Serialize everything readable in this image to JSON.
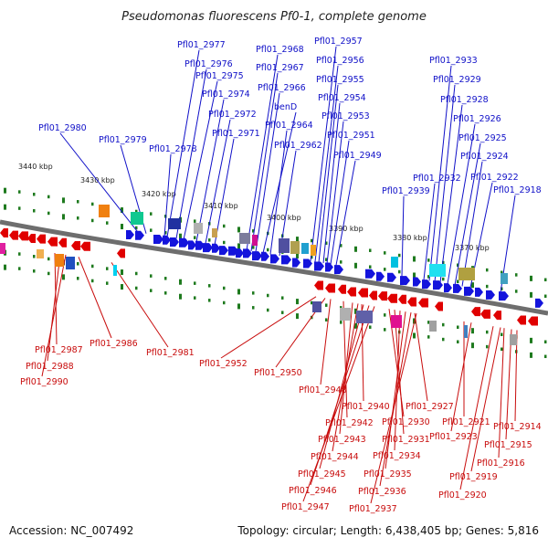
{
  "title": "Pseudomonas fluorescens Pf0-1, complete genome",
  "accession": "Accession: NC_007492",
  "summary": "Topology: circular; Length: 6,438,405 bp; Genes: 5,816",
  "colors": {
    "forward": "#1414dc",
    "reverse": "#e00000",
    "label_top": "#1010c8",
    "label_bot": "#c80c0c",
    "ticks": "#1e7a1e"
  },
  "kbp_labels": [
    "3440 kbp",
    "3430 kbp",
    "3420 kbp",
    "3410 kbp",
    "3400 kbp",
    "3390 kbp",
    "3380 kbp",
    "3370 kbp"
  ],
  "top_labels": [
    "Pfl01_2977",
    "Pfl01_2976",
    "Pfl01_2975",
    "Pfl01_2974",
    "Pfl01_2972",
    "Pfl01_2971",
    "Pfl01_2980",
    "Pfl01_2979",
    "Pfl01_2978",
    "Pfl01_2968",
    "Pfl01_2967",
    "Pfl01_2966",
    "benD",
    "Pfl01_2964",
    "Pfl01_2962",
    "Pfl01_2957",
    "Pfl01_2956",
    "Pfl01_2955",
    "Pfl01_2954",
    "Pfl01_2953",
    "Pfl01_2951",
    "Pfl01_2949",
    "Pfl01_2933",
    "Pfl01_2929",
    "Pfl01_2928",
    "Pfl01_2926",
    "Pfl01_2925",
    "Pfl01_2924",
    "Pfl01_2922",
    "Pfl01_2932",
    "Pfl01_2939",
    "Pfl01_2918"
  ],
  "bottom_labels": [
    "Pfl01_2987",
    "Pfl01_2988",
    "Pfl01_2990",
    "Pfl01_2986",
    "Pfl01_2981",
    "Pfl01_2952",
    "Pfl01_2950",
    "Pfl01_2948",
    "Pfl01_2940",
    "Pfl01_2942",
    "Pfl01_2943",
    "Pfl01_2944",
    "Pfl01_2945",
    "Pfl01_2946",
    "Pfl01_2947",
    "Pfl01_2927",
    "Pfl01_2930",
    "Pfl01_2931",
    "Pfl01_2934",
    "Pfl01_2935",
    "Pfl01_2936",
    "Pfl01_2937",
    "Pfl01_2921",
    "Pfl01_2923",
    "Pfl01_2914",
    "Pfl01_2915",
    "Pfl01_2916",
    "Pfl01_2919",
    "Pfl01_2920"
  ]
}
